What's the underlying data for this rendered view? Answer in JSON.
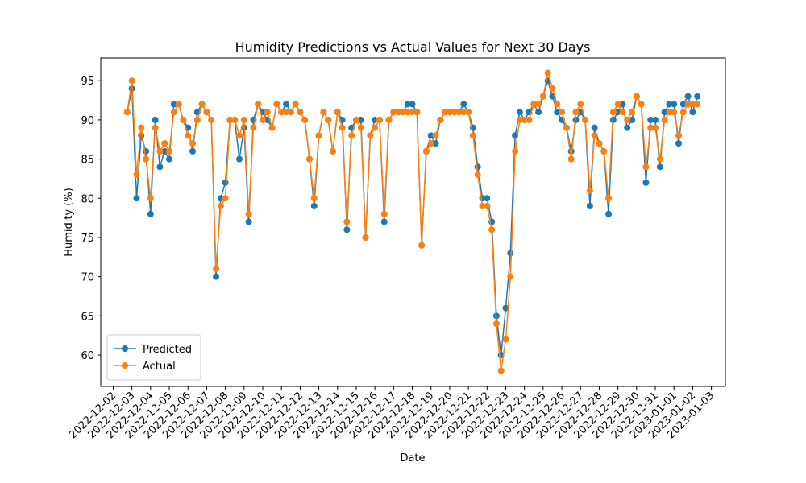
{
  "chart_data": {
    "type": "line",
    "title": "Humidity Predictions vs Actual Values for Next 30 Days",
    "xlabel": "Date",
    "ylabel": "Humidity (%)",
    "x": [
      "2022-12-02 18:00",
      "2022-12-03 00:00",
      "2022-12-03 06:00",
      "2022-12-03 12:00",
      "2022-12-03 18:00",
      "2022-12-04 00:00",
      "2022-12-04 06:00",
      "2022-12-04 12:00",
      "2022-12-04 18:00",
      "2022-12-05 00:00",
      "2022-12-05 06:00",
      "2022-12-05 12:00",
      "2022-12-05 18:00",
      "2022-12-06 00:00",
      "2022-12-06 06:00",
      "2022-12-06 12:00",
      "2022-12-06 18:00",
      "2022-12-07 00:00",
      "2022-12-07 06:00",
      "2022-12-07 12:00",
      "2022-12-07 18:00",
      "2022-12-08 00:00",
      "2022-12-08 06:00",
      "2022-12-08 12:00",
      "2022-12-08 18:00",
      "2022-12-09 00:00",
      "2022-12-09 06:00",
      "2022-12-09 12:00",
      "2022-12-09 18:00",
      "2022-12-10 00:00",
      "2022-12-10 06:00",
      "2022-12-10 12:00",
      "2022-12-10 18:00",
      "2022-12-11 00:00",
      "2022-12-11 06:00",
      "2022-12-11 12:00",
      "2022-12-11 18:00",
      "2022-12-12 00:00",
      "2022-12-12 06:00",
      "2022-12-12 12:00",
      "2022-12-12 18:00",
      "2022-12-13 00:00",
      "2022-12-13 06:00",
      "2022-12-13 12:00",
      "2022-12-13 18:00",
      "2022-12-14 00:00",
      "2022-12-14 06:00",
      "2022-12-14 12:00",
      "2022-12-14 18:00",
      "2022-12-15 00:00",
      "2022-12-15 06:00",
      "2022-12-15 12:00",
      "2022-12-15 18:00",
      "2022-12-16 00:00",
      "2022-12-16 06:00",
      "2022-12-16 12:00",
      "2022-12-16 18:00",
      "2022-12-17 00:00",
      "2022-12-17 06:00",
      "2022-12-17 12:00",
      "2022-12-17 18:00",
      "2022-12-18 00:00",
      "2022-12-18 06:00",
      "2022-12-18 12:00",
      "2022-12-18 18:00",
      "2022-12-19 00:00",
      "2022-12-19 06:00",
      "2022-12-19 12:00",
      "2022-12-19 18:00",
      "2022-12-20 00:00",
      "2022-12-20 06:00",
      "2022-12-20 12:00",
      "2022-12-20 18:00",
      "2022-12-21 00:00",
      "2022-12-21 06:00",
      "2022-12-21 12:00",
      "2022-12-21 18:00",
      "2022-12-22 00:00",
      "2022-12-22 06:00",
      "2022-12-22 12:00",
      "2022-12-22 18:00",
      "2022-12-23 00:00",
      "2022-12-23 06:00",
      "2022-12-23 12:00",
      "2022-12-23 18:00",
      "2022-12-24 00:00",
      "2022-12-24 06:00",
      "2022-12-24 12:00",
      "2022-12-24 18:00",
      "2022-12-25 00:00",
      "2022-12-25 06:00",
      "2022-12-25 12:00",
      "2022-12-25 18:00",
      "2022-12-26 00:00",
      "2022-12-26 06:00",
      "2022-12-26 12:00",
      "2022-12-26 18:00",
      "2022-12-27 00:00",
      "2022-12-27 06:00",
      "2022-12-27 12:00",
      "2022-12-27 18:00",
      "2022-12-28 00:00",
      "2022-12-28 06:00",
      "2022-12-28 12:00",
      "2022-12-28 18:00",
      "2022-12-29 00:00",
      "2022-12-29 06:00",
      "2022-12-29 12:00",
      "2022-12-29 18:00",
      "2022-12-30 00:00",
      "2022-12-30 06:00",
      "2022-12-30 12:00",
      "2022-12-30 18:00",
      "2022-12-31 00:00",
      "2022-12-31 06:00",
      "2022-12-31 12:00",
      "2022-12-31 18:00",
      "2023-01-01 00:00",
      "2023-01-01 06:00",
      "2023-01-01 12:00",
      "2023-01-01 18:00",
      "2023-01-02 00:00",
      "2023-01-02 06:00"
    ],
    "series": [
      {
        "name": "Predicted",
        "color": "#1f77b4",
        "values": [
          91,
          94,
          80,
          88,
          86,
          78,
          90,
          84,
          86,
          85,
          92,
          92,
          90,
          89,
          86,
          91,
          92,
          91,
          90,
          70,
          80,
          82,
          90,
          90,
          85,
          89,
          77,
          90,
          92,
          91,
          90,
          89,
          92,
          91,
          92,
          91,
          92,
          91,
          90,
          85,
          79,
          88,
          91,
          90,
          86,
          91,
          90,
          76,
          89,
          90,
          90,
          75,
          88,
          90,
          90,
          77,
          90,
          91,
          91,
          91,
          92,
          92,
          91,
          74,
          86,
          88,
          87,
          90,
          91,
          91,
          91,
          91,
          92,
          91,
          89,
          84,
          80,
          80,
          77,
          65,
          60,
          66,
          73,
          88,
          91,
          90,
          91,
          92,
          91,
          93,
          95,
          93,
          91,
          90,
          89,
          86,
          90,
          91,
          90,
          79,
          89,
          87,
          86,
          78,
          90,
          91,
          92,
          89,
          90,
          93,
          92,
          82,
          90,
          90,
          84,
          91,
          92,
          92,
          87,
          92,
          93,
          91,
          93
        ]
      },
      {
        "name": "Actual",
        "color": "#ff7f0e",
        "values": [
          91,
          95,
          83,
          89,
          85,
          80,
          89,
          86,
          87,
          86,
          91,
          92,
          90,
          88,
          87,
          90,
          92,
          91,
          90,
          71,
          79,
          80,
          90,
          90,
          88,
          90,
          78,
          89,
          92,
          90,
          91,
          89,
          92,
          91,
          91,
          91,
          92,
          91,
          90,
          85,
          80,
          88,
          91,
          90,
          86,
          91,
          89,
          77,
          88,
          90,
          89,
          75,
          88,
          89,
          90,
          78,
          90,
          91,
          91,
          91,
          91,
          91,
          91,
          74,
          86,
          87,
          88,
          90,
          91,
          91,
          91,
          91,
          91,
          91,
          88,
          83,
          79,
          79,
          76,
          64,
          58,
          62,
          70,
          86,
          90,
          90,
          90,
          92,
          92,
          93,
          96,
          94,
          92,
          91,
          89,
          85,
          91,
          92,
          90,
          81,
          88,
          87,
          86,
          80,
          91,
          92,
          91,
          90,
          91,
          93,
          92,
          84,
          89,
          89,
          85,
          90,
          91,
          91,
          88,
          91,
          92,
          92,
          92
        ]
      }
    ],
    "xlim": [
      "2022-12-01 08:00",
      "2023-01-03 18:00"
    ],
    "xticks": [
      "2022-12-02",
      "2022-12-03",
      "2022-12-04",
      "2022-12-05",
      "2022-12-06",
      "2022-12-07",
      "2022-12-08",
      "2022-12-09",
      "2022-12-10",
      "2022-12-11",
      "2022-12-12",
      "2022-12-13",
      "2022-12-14",
      "2022-12-15",
      "2022-12-16",
      "2022-12-17",
      "2022-12-18",
      "2022-12-19",
      "2022-12-20",
      "2022-12-21",
      "2022-12-22",
      "2022-12-23",
      "2022-12-24",
      "2022-12-25",
      "2022-12-26",
      "2022-12-27",
      "2022-12-28",
      "2022-12-29",
      "2022-12-30",
      "2022-12-31",
      "2023-01-01",
      "2023-01-02",
      "2023-01-03"
    ],
    "ylim": [
      56,
      97.9
    ],
    "yticks": [
      60,
      65,
      70,
      75,
      80,
      85,
      90,
      95
    ],
    "legend": "lower left"
  }
}
